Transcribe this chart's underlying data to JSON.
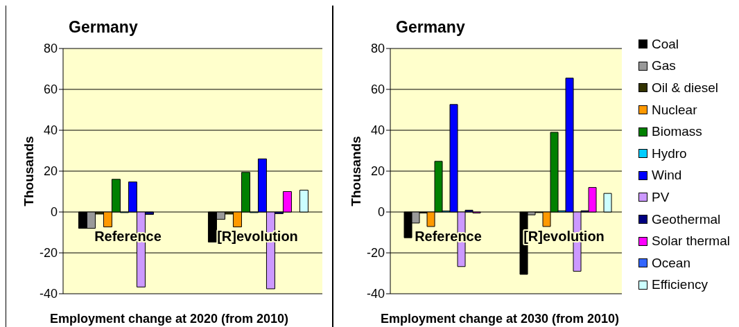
{
  "chart_data": [
    {
      "type": "bar",
      "title": "Germany",
      "xlabel": "Employment change at 2020 (from 2010)",
      "ylabel": "Thousands",
      "categories": [
        "Reference",
        "[R]evolution"
      ],
      "ylim": [
        -40,
        80
      ],
      "yticks": [
        -40,
        -20,
        0,
        20,
        40,
        60,
        80
      ],
      "grid": "y",
      "legend": false,
      "series": [
        {
          "color": "#000000",
          "values": [
            -8,
            -14.7
          ]
        },
        {
          "color": "#999999",
          "values": [
            -8,
            -3.6
          ]
        },
        {
          "color": "#333300",
          "values": [
            -1,
            -1
          ]
        },
        {
          "color": "#ff9900",
          "values": [
            -7.3,
            -7.3
          ]
        },
        {
          "color": "#008000",
          "values": [
            16,
            19.4
          ]
        },
        {
          "color": "#00ccff",
          "values": [
            -0.3,
            -0.3
          ]
        },
        {
          "color": "#0000ff",
          "values": [
            14.7,
            26
          ]
        },
        {
          "color": "#cc99ff",
          "values": [
            -36.7,
            -37.6
          ]
        },
        {
          "color": "#000080",
          "values": [
            -1.2,
            -0.8
          ]
        },
        {
          "color": "#ff00ff",
          "values": [
            0,
            10
          ]
        },
        {
          "color": "#3366ff",
          "values": [
            0,
            0
          ]
        },
        {
          "color": "#ccffff",
          "values": [
            0,
            10.7
          ]
        }
      ]
    },
    {
      "type": "bar",
      "title": "Germany",
      "xlabel": "Employment change at 2030 (from 2010)",
      "ylabel": "Thousands",
      "categories": [
        "Reference",
        "[R]evolution"
      ],
      "ylim": [
        -40,
        80
      ],
      "yticks": [
        -40,
        -20,
        0,
        20,
        40,
        60,
        80
      ],
      "grid": "y",
      "legend": "right",
      "series": [
        {
          "name": "Coal",
          "color": "#000000",
          "values": [
            -12.6,
            -30.5
          ]
        },
        {
          "name": "Gas",
          "color": "#999999",
          "values": [
            -5.4,
            -1.4
          ]
        },
        {
          "name": "Oil & diesel",
          "color": "#333300",
          "values": [
            -0.5,
            -0.3
          ]
        },
        {
          "name": "Nuclear",
          "color": "#ff9900",
          "values": [
            -7.1,
            -7.1
          ]
        },
        {
          "name": "Biomass",
          "color": "#008000",
          "values": [
            24.8,
            39
          ]
        },
        {
          "name": "Hydro",
          "color": "#00ccff",
          "values": [
            0.5,
            0.6
          ]
        },
        {
          "name": "Wind",
          "color": "#0000ff",
          "values": [
            52.6,
            65.5
          ]
        },
        {
          "name": "PV",
          "color": "#cc99ff",
          "values": [
            -26.7,
            -29
          ]
        },
        {
          "name": "Geothermal",
          "color": "#000080",
          "values": [
            0.9,
            0.6
          ]
        },
        {
          "name": "Solar thermal",
          "color": "#ff00ff",
          "values": [
            -0.5,
            12
          ]
        },
        {
          "name": "Ocean",
          "color": "#3366ff",
          "values": [
            0,
            0
          ]
        },
        {
          "name": "Efficiency",
          "color": "#ccffff",
          "values": [
            0,
            9.1
          ]
        }
      ]
    }
  ]
}
